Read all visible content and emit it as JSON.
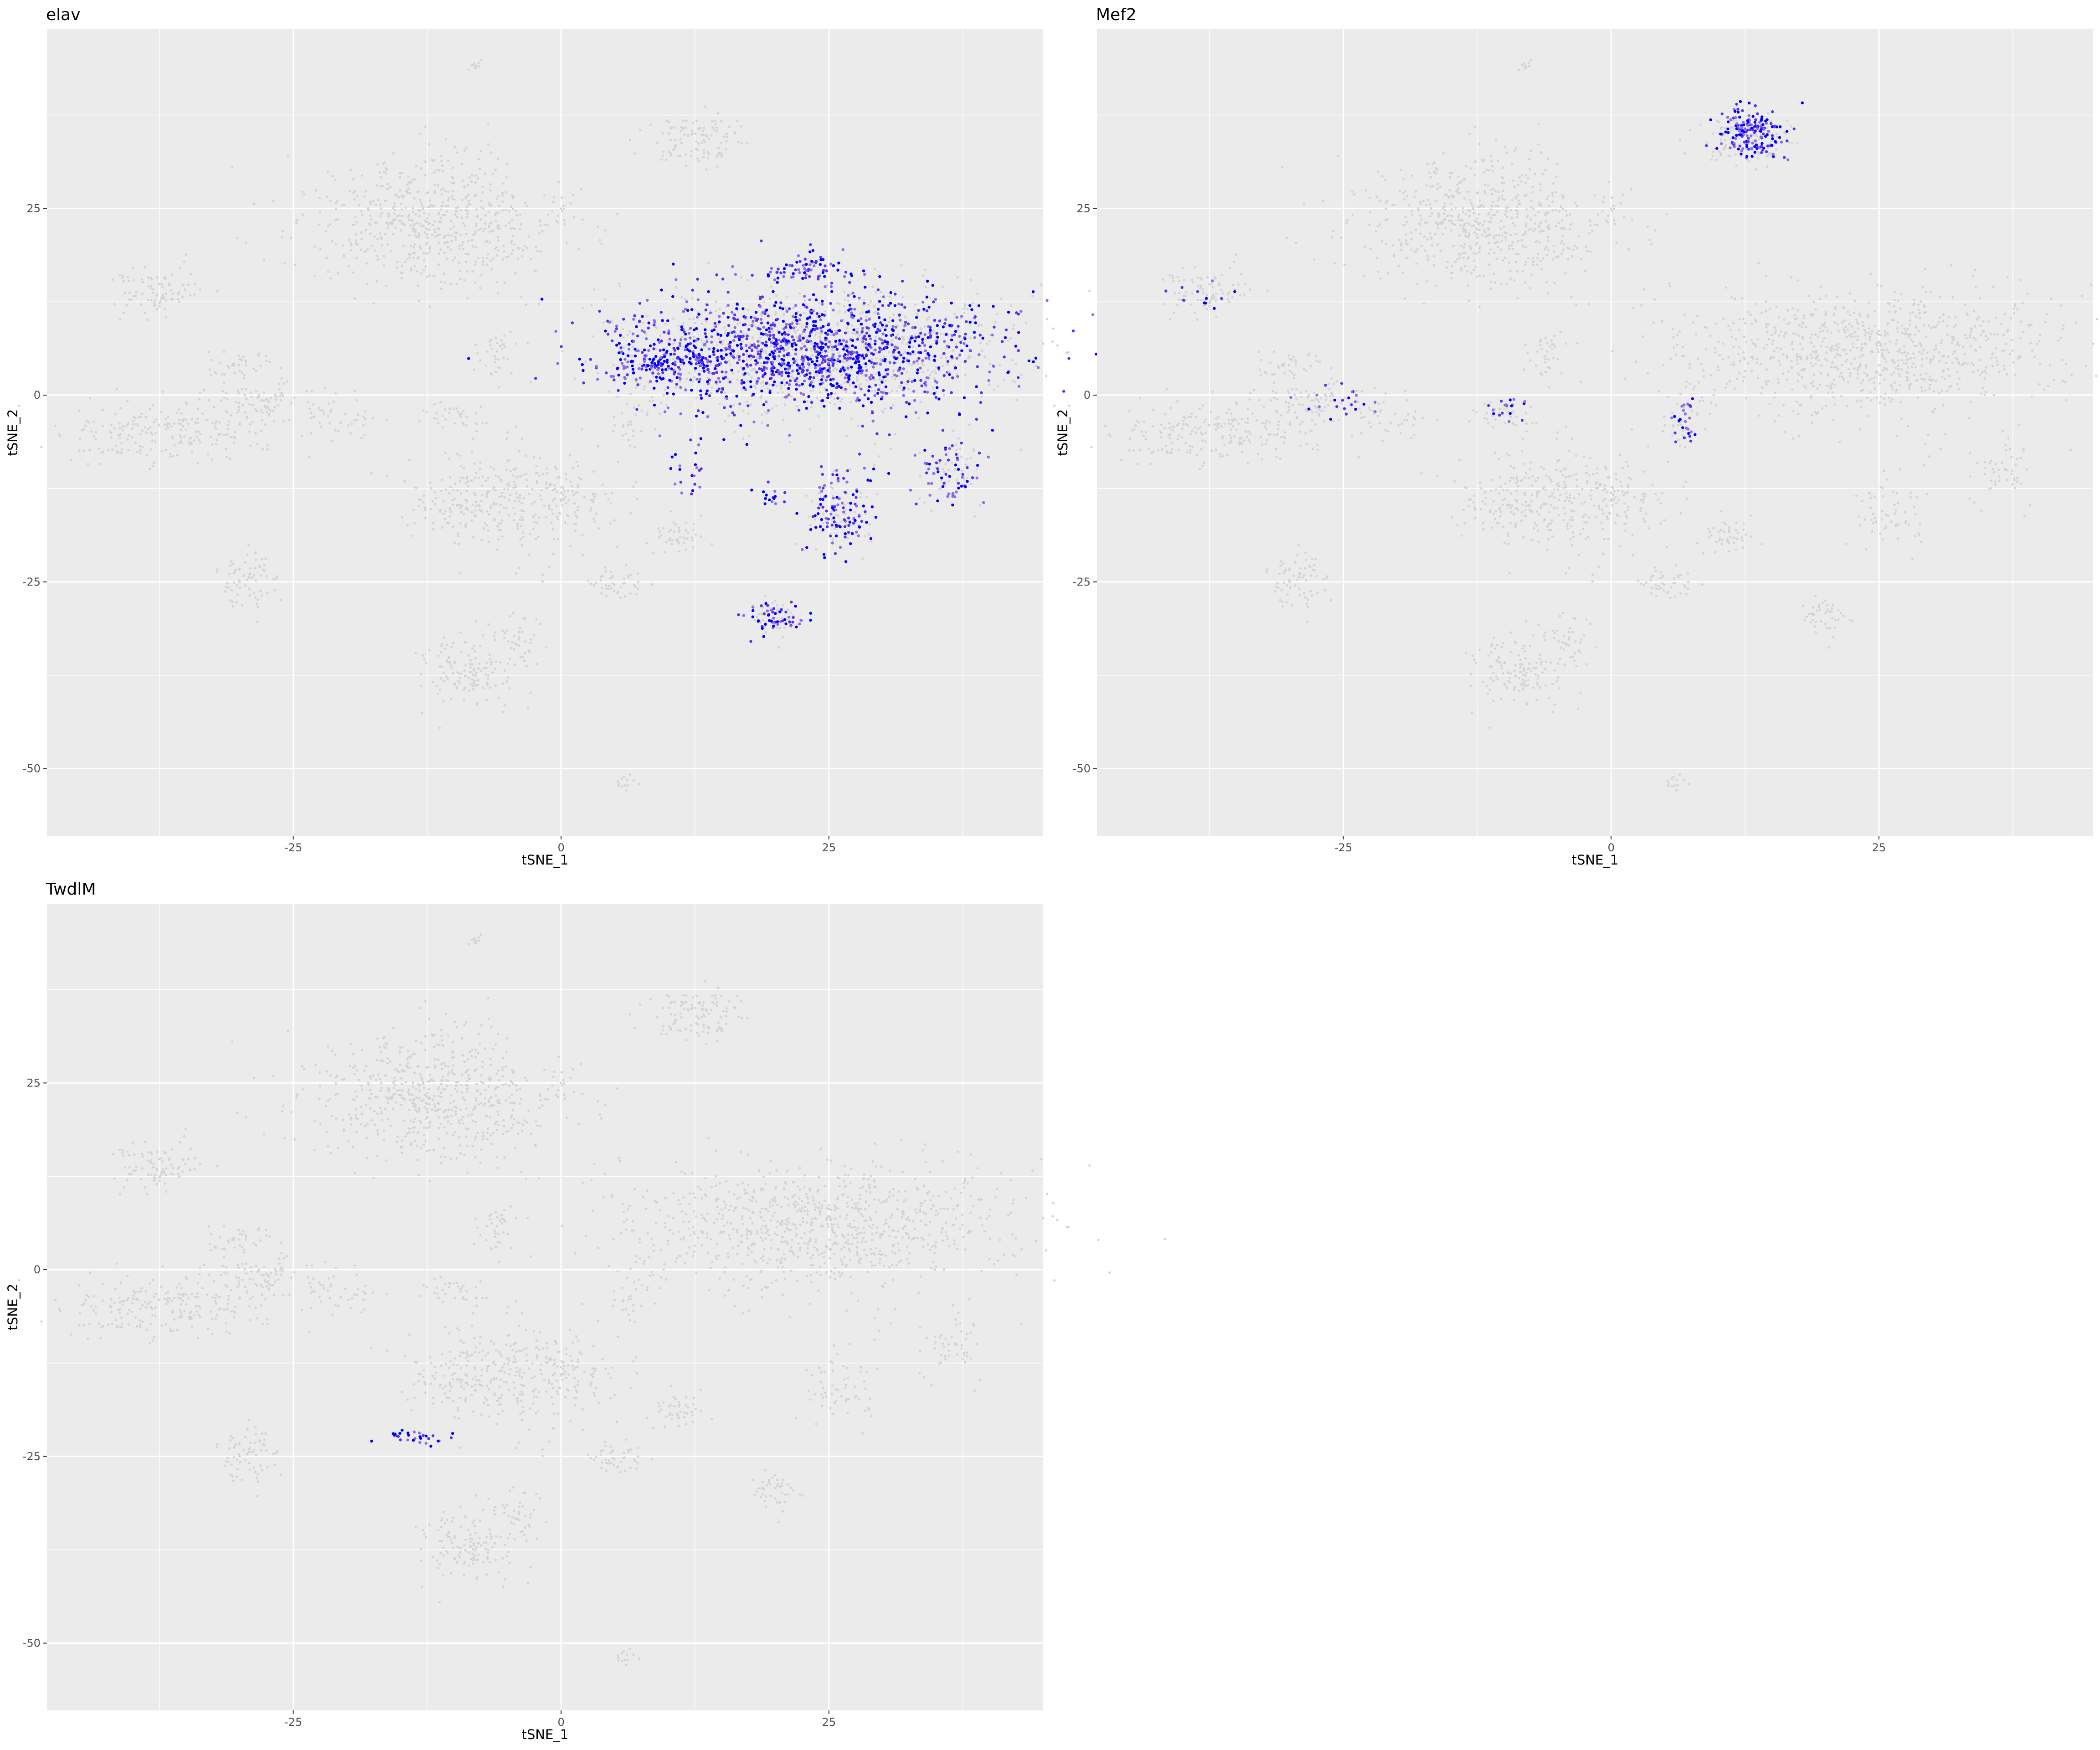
{
  "figure": {
    "background": "#ffffff",
    "panel_background": "#ebebeb",
    "grid_color": "#ffffff",
    "point_colors": {
      "low": "#d3d3d3",
      "high": "#0000ff"
    }
  },
  "chart_data": [
    {
      "type": "scatter",
      "title": "elav",
      "xlabel": "tSNE_1",
      "ylabel": "tSNE_2",
      "xlim": [
        -48,
        45
      ],
      "ylim": [
        -59,
        49
      ],
      "xticks": [
        -25,
        0,
        25
      ],
      "yticks": [
        -50,
        -25,
        0,
        25
      ],
      "xtick_labels": [
        "-25",
        "0",
        "25"
      ],
      "ytick_labels": [
        "-50",
        "-25",
        "0",
        "25"
      ],
      "grid": true,
      "legend": "none",
      "color_low": "#d3d3d3",
      "color_high": "#0000ff",
      "expressing_regions": [
        {
          "cx": 23,
          "cy": 6,
          "rx": 16,
          "ry": 7,
          "n": 1250
        },
        {
          "cx": 10,
          "cy": 4,
          "rx": 5,
          "ry": 3,
          "n": 140
        },
        {
          "cx": 23,
          "cy": 17,
          "rx": 4,
          "ry": 2,
          "n": 70
        },
        {
          "cx": 26,
          "cy": -16,
          "rx": 3,
          "ry": 5,
          "n": 110
        },
        {
          "cx": 20,
          "cy": -30,
          "rx": 2,
          "ry": 2.5,
          "n": 55
        },
        {
          "cx": 36,
          "cy": -10,
          "rx": 3,
          "ry": 4,
          "n": 60
        },
        {
          "cx": 12,
          "cy": -8,
          "rx": 2.5,
          "ry": 5,
          "n": 25
        },
        {
          "cx": 20,
          "cy": -14,
          "rx": 1.5,
          "ry": 1.5,
          "n": 15
        }
      ]
    },
    {
      "type": "scatter",
      "title": "Mef2",
      "xlabel": "tSNE_1",
      "ylabel": "tSNE_2",
      "xlim": [
        -48,
        45
      ],
      "ylim": [
        -59,
        49
      ],
      "xticks": [
        -25,
        0,
        25
      ],
      "yticks": [
        -50,
        -25,
        0,
        25
      ],
      "xtick_labels": [
        "-25",
        "0",
        "25"
      ],
      "ytick_labels": [
        "-50",
        "-25",
        "0",
        "25"
      ],
      "grid": true,
      "legend": "none",
      "color_low": "#d3d3d3",
      "color_high": "#0000ff",
      "expressing_regions": [
        {
          "cx": 13,
          "cy": 35,
          "rx": 3,
          "ry": 3,
          "n": 170
        },
        {
          "cx": 7,
          "cy": -3,
          "rx": 1,
          "ry": 3,
          "n": 25
        },
        {
          "cx": -10,
          "cy": -2,
          "rx": 1.5,
          "ry": 1.2,
          "n": 18
        },
        {
          "cx": -25,
          "cy": -1,
          "rx": 4,
          "ry": 2,
          "n": 22
        },
        {
          "cx": -38,
          "cy": 13,
          "rx": 3,
          "ry": 2,
          "n": 12
        }
      ]
    },
    {
      "type": "scatter",
      "title": "TwdlM",
      "xlabel": "tSNE_1",
      "ylabel": "tSNE_2",
      "xlim": [
        -48,
        45
      ],
      "ylim": [
        -59,
        49
      ],
      "xticks": [
        -25,
        0,
        25
      ],
      "yticks": [
        -50,
        -25,
        0,
        25
      ],
      "xtick_labels": [
        "-25",
        "0",
        "25"
      ],
      "ytick_labels": [
        "-50",
        "-25",
        "0",
        "25"
      ],
      "grid": true,
      "legend": "none",
      "color_low": "#d3d3d3",
      "color_high": "#0000ff",
      "expressing_regions": [
        {
          "cx": -14,
          "cy": -22.5,
          "rx": 3,
          "ry": 0.8,
          "n": 30
        }
      ]
    }
  ],
  "base_clusters": [
    {
      "cx": -12,
      "cy": 23,
      "rx": 11,
      "ry": 8,
      "n": 650
    },
    {
      "cx": 24,
      "cy": 6,
      "rx": 17,
      "ry": 8,
      "n": 900
    },
    {
      "cx": -38,
      "cy": 14,
      "rx": 4,
      "ry": 3,
      "n": 90
    },
    {
      "cx": -37,
      "cy": -5,
      "rx": 9,
      "ry": 4,
      "n": 220
    },
    {
      "cx": -28,
      "cy": -1,
      "rx": 5,
      "ry": 2.5,
      "n": 80
    },
    {
      "cx": -5,
      "cy": -14,
      "rx": 9,
      "ry": 6,
      "n": 380
    },
    {
      "cx": -29,
      "cy": -25,
      "rx": 2.5,
      "ry": 3.5,
      "n": 70
    },
    {
      "cx": -9,
      "cy": -37,
      "rx": 4,
      "ry": 4,
      "n": 130
    },
    {
      "cx": -4,
      "cy": -33,
      "rx": 2,
      "ry": 4,
      "n": 45
    },
    {
      "cx": 13,
      "cy": 34,
      "rx": 4,
      "ry": 3,
      "n": 110
    },
    {
      "cx": -8,
      "cy": 44,
      "rx": 0.6,
      "ry": 0.8,
      "n": 10
    },
    {
      "cx": 6,
      "cy": -52,
      "rx": 0.8,
      "ry": 1.5,
      "n": 14
    },
    {
      "cx": 5,
      "cy": -25,
      "rx": 2.5,
      "ry": 2,
      "n": 45
    },
    {
      "cx": 11,
      "cy": -19,
      "rx": 2.5,
      "ry": 2,
      "n": 45
    },
    {
      "cx": -6,
      "cy": 5,
      "rx": 2,
      "ry": 3,
      "n": 35
    },
    {
      "cx": -10,
      "cy": -3,
      "rx": 3,
      "ry": 1.5,
      "n": 35
    },
    {
      "cx": -20,
      "cy": -3,
      "rx": 3,
      "ry": 2.5,
      "n": 35
    },
    {
      "cx": -30,
      "cy": 4,
      "rx": 3,
      "ry": 2,
      "n": 40
    },
    {
      "cx": 20,
      "cy": -30,
      "rx": 2,
      "ry": 2.5,
      "n": 45
    },
    {
      "cx": 26,
      "cy": -16,
      "rx": 3,
      "ry": 5,
      "n": 60
    },
    {
      "cx": 36,
      "cy": -10,
      "rx": 3,
      "ry": 4,
      "n": 50
    },
    {
      "cx": 7,
      "cy": -3,
      "rx": 2,
      "ry": 4,
      "n": 30
    }
  ]
}
